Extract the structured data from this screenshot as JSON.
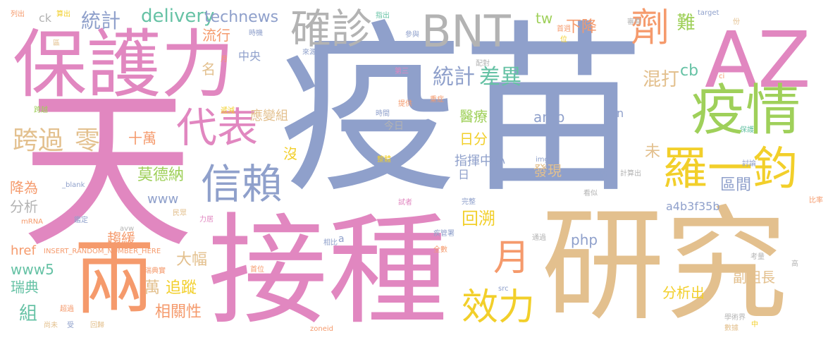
{
  "palette": {
    "pink": "#e187c0",
    "blue": "#8fa0cb",
    "tan": "#e3c08e",
    "orange": "#f59a6c",
    "green": "#9fd05a",
    "yellow": "#f2cf2a",
    "teal": "#66c2a5",
    "gray": "#b3b3b3"
  },
  "words": [
    {
      "text": "疫苗",
      "color": "blue"
    },
    {
      "text": "天",
      "color": "pink"
    },
    {
      "text": "接種",
      "color": "pink"
    },
    {
      "text": "研究",
      "color": "tan"
    },
    {
      "text": "保護力",
      "color": "pink"
    },
    {
      "text": "AZ",
      "color": "pink"
    },
    {
      "text": "兩",
      "color": "orange"
    },
    {
      "text": "疫情",
      "color": "green"
    },
    {
      "text": "BNT",
      "color": "gray"
    },
    {
      "text": "確診",
      "color": "gray"
    },
    {
      "text": "劑",
      "color": "orange"
    },
    {
      "text": "羅一鈞",
      "color": "yellow"
    },
    {
      "text": "信賴",
      "color": "blue"
    },
    {
      "text": "代表",
      "color": "pink"
    },
    {
      "text": "效力",
      "color": "yellow"
    },
    {
      "text": "月",
      "color": "orange"
    },
    {
      "text": "跨過",
      "color": "tan"
    },
    {
      "text": "零",
      "color": "tan"
    },
    {
      "text": "統計",
      "color": "blue"
    },
    {
      "text": "差異",
      "color": "teal"
    },
    {
      "text": "統計",
      "color": "blue"
    },
    {
      "text": "delivery",
      "color": "teal"
    },
    {
      "text": "technews",
      "color": "blue"
    },
    {
      "text": "tw",
      "color": "green"
    },
    {
      "text": "下降",
      "color": "orange"
    },
    {
      "text": "難",
      "color": "green"
    },
    {
      "text": "cb",
      "color": "teal"
    },
    {
      "text": "混打",
      "color": "tan"
    },
    {
      "text": "區間",
      "color": "blue"
    },
    {
      "text": "未",
      "color": "tan"
    },
    {
      "text": "名",
      "color": "tan"
    },
    {
      "text": "中央",
      "color": "blue"
    },
    {
      "text": "流行",
      "color": "orange"
    },
    {
      "text": "十萬",
      "color": "orange"
    },
    {
      "text": "醫療",
      "color": "green"
    },
    {
      "text": "日分",
      "color": "yellow"
    },
    {
      "text": "指揮中心",
      "color": "blue"
    },
    {
      "text": "amp",
      "color": "blue"
    },
    {
      "text": "應變組",
      "color": "tan"
    },
    {
      "text": "沒",
      "color": "yellow"
    },
    {
      "text": "莫德納",
      "color": "green"
    },
    {
      "text": "www",
      "color": "blue"
    },
    {
      "text": "降為",
      "color": "orange"
    },
    {
      "text": "分析",
      "color": "gray"
    },
    {
      "text": "發現",
      "color": "tan"
    },
    {
      "text": "回溯",
      "color": "yellow"
    },
    {
      "text": "a4b3f35b",
      "color": "blue"
    },
    {
      "text": "php",
      "color": "blue"
    },
    {
      "text": "趨緩",
      "color": "orange"
    },
    {
      "text": "href",
      "color": "orange"
    },
    {
      "text": "www5",
      "color": "teal"
    },
    {
      "text": "瑞典",
      "color": "teal"
    },
    {
      "text": "大幅",
      "color": "tan"
    },
    {
      "text": "萬",
      "color": "tan"
    },
    {
      "text": "追蹤",
      "color": "yellow"
    },
    {
      "text": "相關性",
      "color": "orange"
    },
    {
      "text": "組",
      "color": "teal"
    },
    {
      "text": "分析出",
      "color": "yellow"
    },
    {
      "text": "副組長",
      "color": "tan"
    },
    {
      "text": "n",
      "color": "blue"
    },
    {
      "text": "日",
      "color": "blue"
    },
    {
      "text": "今日",
      "color": "gray"
    },
    {
      "text": "a",
      "color": "blue"
    },
    {
      "text": "ck",
      "color": "gray"
    },
    {
      "text": "列出",
      "color": "orange"
    },
    {
      "text": "算出",
      "color": "yellow"
    },
    {
      "text": "指出",
      "color": "teal"
    },
    {
      "text": "參與",
      "color": "blue"
    },
    {
      "text": "首週",
      "color": "orange"
    },
    {
      "text": "位",
      "color": "yellow"
    },
    {
      "text": "審查",
      "color": "gray"
    },
    {
      "text": "target",
      "color": "blue"
    },
    {
      "text": "份",
      "color": "tan"
    },
    {
      "text": "時機",
      "color": "blue"
    },
    {
      "text": "區",
      "color": "tan"
    },
    {
      "text": "月",
      "color": "orange"
    },
    {
      "text": "來源",
      "color": "blue"
    },
    {
      "text": "配對",
      "color": "gray"
    },
    {
      "text": "第三",
      "color": "pink"
    },
    {
      "text": "提供",
      "color": "orange"
    },
    {
      "text": "重症",
      "color": "orange"
    },
    {
      "text": "時間",
      "color": "blue"
    },
    {
      "text": "跨越",
      "color": "green"
    },
    {
      "text": "遞減",
      "color": "yellow"
    },
    {
      "text": "_blank",
      "color": "blue"
    },
    {
      "text": "img",
      "color": "blue"
    },
    {
      "text": "整體",
      "color": "yellow"
    },
    {
      "text": "討論",
      "color": "blue"
    },
    {
      "text": "計算出",
      "color": "gray"
    },
    {
      "text": "間",
      "color": "blue"
    },
    {
      "text": "保護",
      "color": "teal"
    },
    {
      "text": "ci",
      "color": "orange"
    },
    {
      "text": "看似",
      "color": "gray"
    },
    {
      "text": "比率",
      "color": "orange"
    },
    {
      "text": "試者",
      "color": "pink"
    },
    {
      "text": "完整",
      "color": "blue"
    },
    {
      "text": "民眾",
      "color": "tan"
    },
    {
      "text": "力居",
      "color": "pink"
    },
    {
      "text": "mRNA",
      "color": "orange"
    },
    {
      "text": "鑑定",
      "color": "blue"
    },
    {
      "text": "avw",
      "color": "gray"
    },
    {
      "text": "疾管署",
      "color": "blue"
    },
    {
      "text": "通過",
      "color": "gray"
    },
    {
      "text": "相比",
      "color": "blue"
    },
    {
      "text": "INSERT_RANDOM_NUMBER_HERE",
      "color": "orange"
    },
    {
      "text": "瑞典實",
      "color": "orange"
    },
    {
      "text": "全數",
      "color": "orange"
    },
    {
      "text": "首位",
      "color": "orange"
    },
    {
      "text": "考量",
      "color": "gray"
    },
    {
      "text": "高",
      "color": "gray"
    },
    {
      "text": "src",
      "color": "blue"
    },
    {
      "text": "學術界",
      "color": "gray"
    },
    {
      "text": "數據",
      "color": "tan"
    },
    {
      "text": "中",
      "color": "yellow"
    },
    {
      "text": "超過",
      "color": "orange"
    },
    {
      "text": "尚未",
      "color": "tan"
    },
    {
      "text": "受",
      "color": "blue"
    },
    {
      "text": "回歸",
      "color": "tan"
    },
    {
      "text": "zoneid",
      "color": "orange"
    }
  ]
}
